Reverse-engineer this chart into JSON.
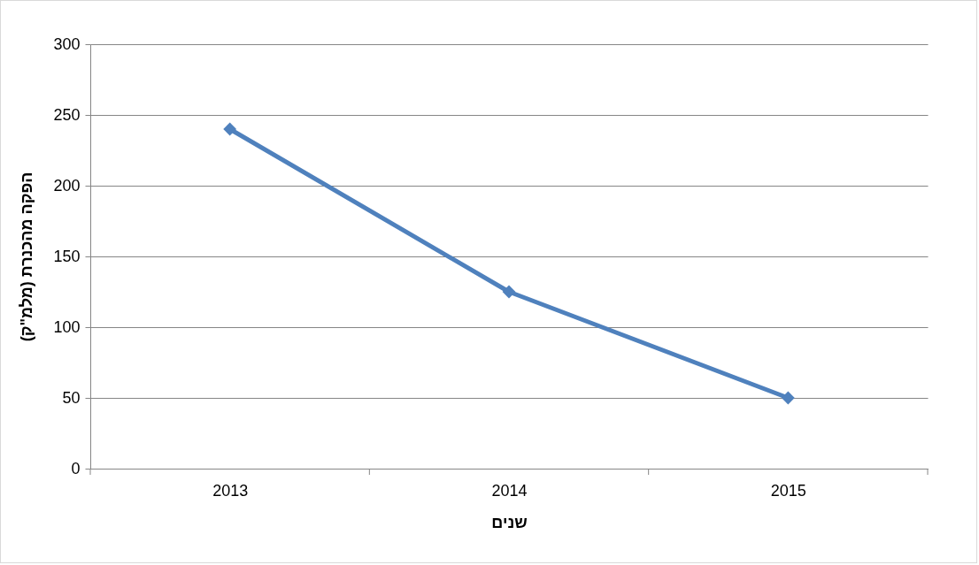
{
  "chart_data": {
    "type": "line",
    "xlabel": "שנים",
    "ylabel": "הפקה מהכנרת (מלמ\"ק)",
    "categories": [
      "2013",
      "2014",
      "2015"
    ],
    "series": [
      {
        "color": "#4f81bd",
        "values": [
          240,
          125,
          50
        ]
      }
    ],
    "ylim": [
      0,
      300
    ],
    "yticks": [
      0,
      50,
      100,
      150,
      200,
      250,
      300
    ],
    "grid": "y",
    "marker": "diamond",
    "line_style": "solid"
  }
}
